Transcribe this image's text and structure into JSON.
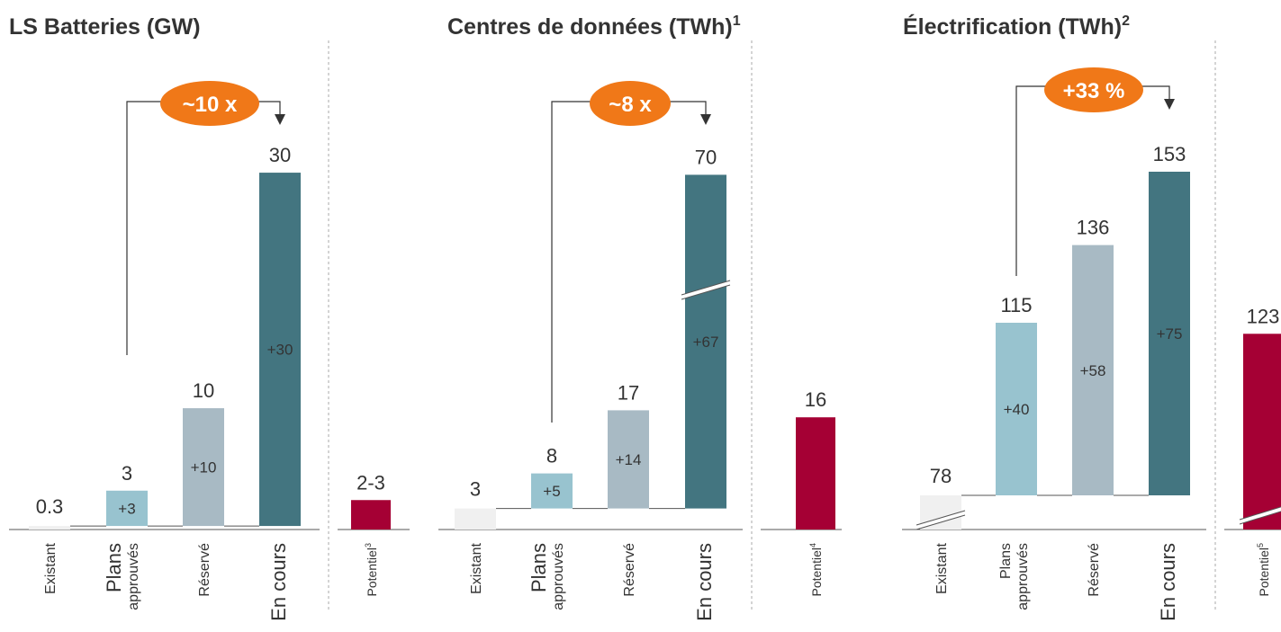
{
  "chart_data": [
    {
      "type": "waterfall",
      "title": "LS Batteries (GW)",
      "categories": [
        [
          "Existant"
        ],
        [
          "Plans",
          "approuvés"
        ],
        [
          "Réservé"
        ],
        [
          "En cours"
        ]
      ],
      "existing": 0.3,
      "increments": [
        3,
        10,
        30
      ],
      "increment_labels": [
        "+3",
        "+10",
        "+30"
      ],
      "totals": [
        3,
        10,
        30
      ],
      "broken": [],
      "colors": [
        "#f0f0f0",
        "#98c3cf",
        "#a8bac4",
        "#437580"
      ],
      "growth_label": "~10 x",
      "growth_color": "#f07818",
      "potential": {
        "label": "Potentiel",
        "note": "3",
        "value": 2.5,
        "value_label": "2-3",
        "color": "#a50034",
        "broken": false
      }
    },
    {
      "type": "waterfall",
      "title": "Centres de données (TWh)",
      "title_note": "1",
      "categories": [
        [
          "Existant"
        ],
        [
          "Plans",
          "approuvés"
        ],
        [
          "Réservé"
        ],
        [
          "En cours"
        ]
      ],
      "existing": 3,
      "increments": [
        5,
        14,
        67
      ],
      "increment_labels": [
        "+5",
        "+14",
        "+67"
      ],
      "totals": [
        8,
        17,
        70
      ],
      "broken": [
        3
      ],
      "colors": [
        "#f0f0f0",
        "#98c3cf",
        "#a8bac4",
        "#437580"
      ],
      "growth_label": "~8 x",
      "growth_color": "#f07818",
      "potential": {
        "label": "Potentiel",
        "note": "4",
        "value": 16,
        "color": "#a50034",
        "broken": false
      }
    },
    {
      "type": "waterfall",
      "title": "Électrification (TWh)",
      "title_note": "2",
      "categories": [
        [
          "Existant"
        ],
        [
          "Plans",
          "approuvés"
        ],
        [
          "Réservé"
        ],
        [
          "En cours"
        ]
      ],
      "existing": 78,
      "increments": [
        40,
        58,
        75
      ],
      "increment_labels": [
        "+40",
        "+58",
        "+75"
      ],
      "totals": [
        115,
        136,
        153
      ],
      "broken": [
        0
      ],
      "colors": [
        "#f0f0f0",
        "#98c3cf",
        "#a8bac4",
        "#437580"
      ],
      "growth_label": "+33 %",
      "growth_color": "#f07818",
      "potential": {
        "label": "Potentiel",
        "note": "5",
        "value": 123,
        "color": "#a50034",
        "broken": true
      }
    }
  ]
}
